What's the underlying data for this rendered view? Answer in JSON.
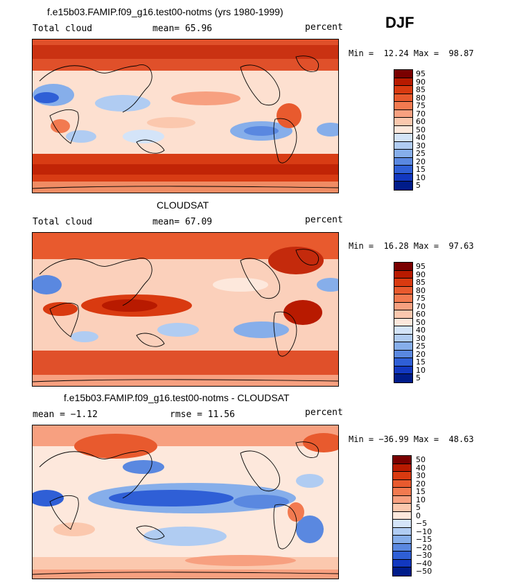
{
  "season": "DJF",
  "panels": [
    {
      "title": "f.e15b03.FAMIP.f09_g16.test00-notms (yrs 1980-1999)",
      "left_label": "Total cloud",
      "center_label": "mean=  65.96",
      "right_label": "percent",
      "minmax": "Min =  12.24 Max =  98.87",
      "legend_ticks": [
        "95",
        "90",
        "85",
        "80",
        "75",
        "70",
        "60",
        "50",
        "40",
        "30",
        "25",
        "20",
        "15",
        "10",
        "5"
      ],
      "legend_colors": [
        "#7a0000",
        "#b81a00",
        "#d93a10",
        "#e85a2e",
        "#f27a50",
        "#f7a080",
        "#fbc8ae",
        "#fde8dc",
        "#d4e4f8",
        "#b0ccf2",
        "#86aeea",
        "#5a88e0",
        "#2f5fd6",
        "#1238c0",
        "#001c8a"
      ]
    },
    {
      "title": "CLOUDSAT",
      "left_label": "Total cloud",
      "center_label": "mean=  67.09",
      "right_label": "percent",
      "minmax": "Min =  16.28 Max =  97.63",
      "legend_ticks": [
        "95",
        "90",
        "85",
        "80",
        "75",
        "70",
        "60",
        "50",
        "40",
        "30",
        "25",
        "20",
        "15",
        "10",
        "5"
      ],
      "legend_colors": [
        "#7a0000",
        "#b81a00",
        "#d93a10",
        "#e85a2e",
        "#f27a50",
        "#f7a080",
        "#fbc8ae",
        "#fde8dc",
        "#d4e4f8",
        "#b0ccf2",
        "#86aeea",
        "#5a88e0",
        "#2f5fd6",
        "#1238c0",
        "#001c8a"
      ]
    },
    {
      "title": "f.e15b03.FAMIP.f09_g16.test00-notms - CLOUDSAT",
      "left_label": "mean =  −1.12",
      "center_label": "rmse =  11.56",
      "right_label": "percent",
      "minmax": "Min = −36.99 Max =  48.63",
      "legend_ticks": [
        "50",
        "40",
        "30",
        "20",
        "15",
        "10",
        "5",
        "0",
        "−5",
        "−10",
        "−15",
        "−20",
        "−30",
        "−40",
        "−50"
      ],
      "legend_colors": [
        "#7a0000",
        "#b81a00",
        "#d93a10",
        "#e85a2e",
        "#f27a50",
        "#f7a080",
        "#fbc8ae",
        "#fde8dc",
        "#d4e4f8",
        "#b0ccf2",
        "#86aeea",
        "#5a88e0",
        "#2f5fd6",
        "#1238c0",
        "#001c8a"
      ]
    }
  ]
}
